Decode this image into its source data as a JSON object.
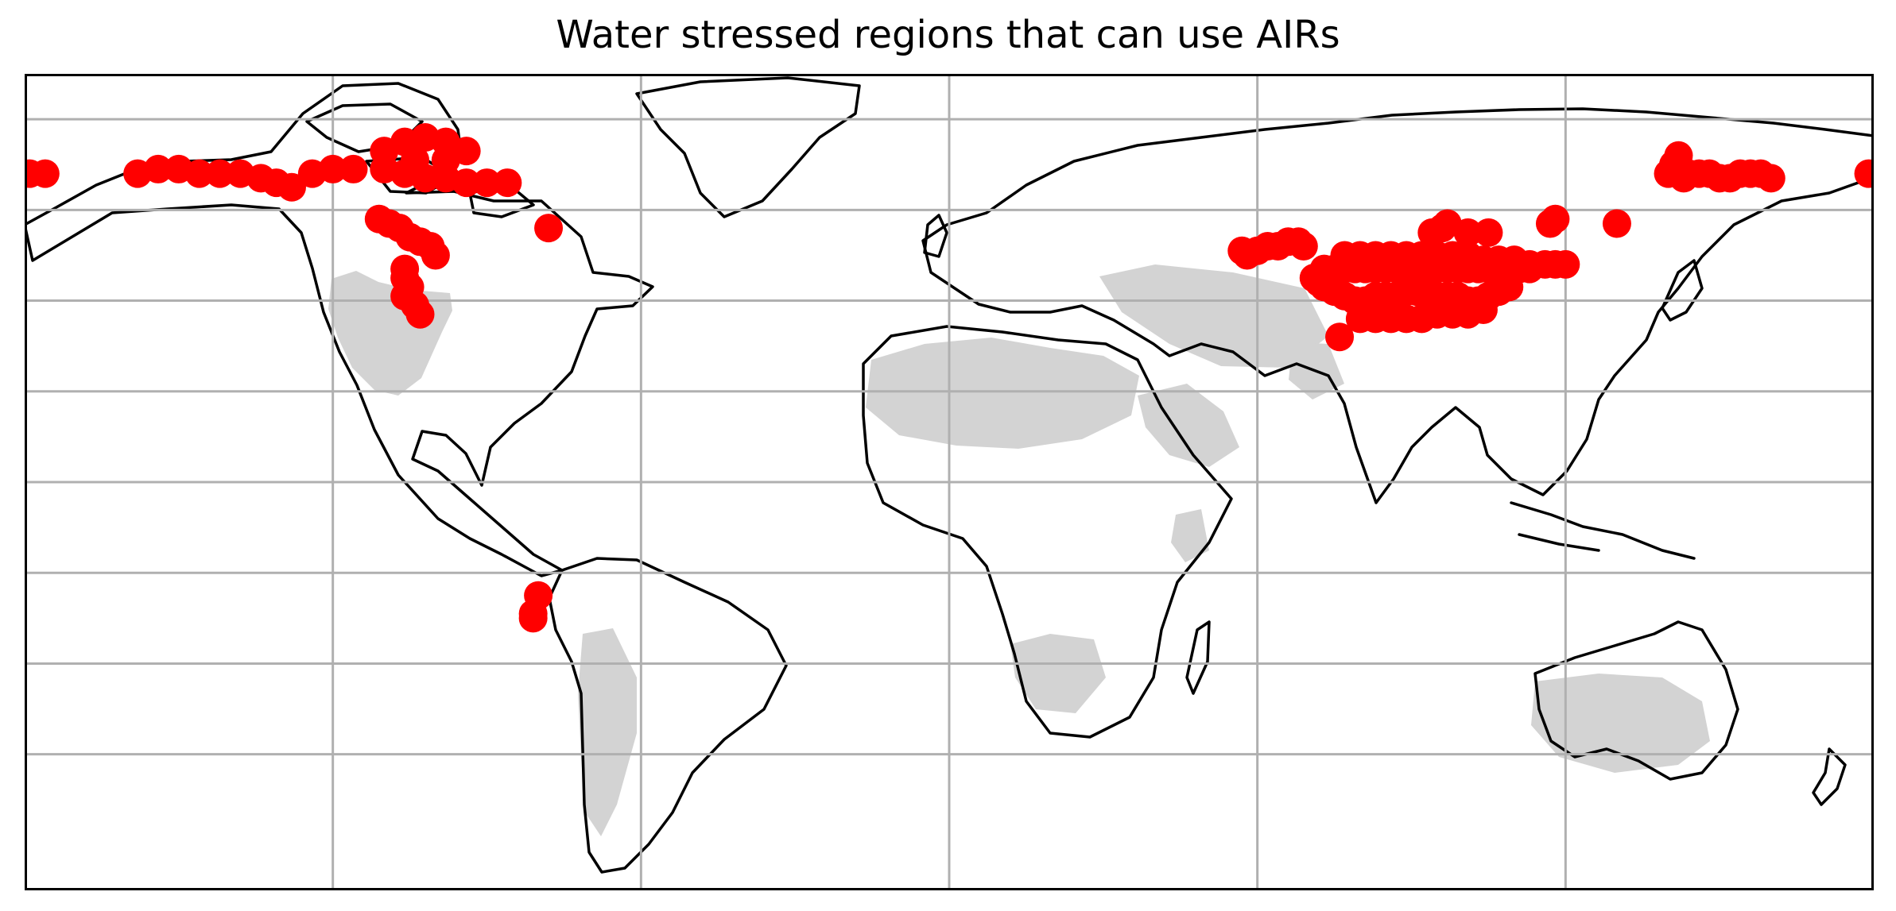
{
  "title": "Water stressed regions that can use AIRs",
  "map": {
    "projection": "PlateCarree",
    "extent": {
      "lon": [
        -180,
        180
      ],
      "lat": [
        -90,
        90
      ]
    },
    "gridlines": {
      "lon": [
        -120,
        -60,
        0,
        60,
        120
      ],
      "lat": [
        -60,
        -40,
        -20,
        0,
        20,
        40,
        60,
        80
      ],
      "color": "#b0b0b0"
    },
    "colors": {
      "coastline": "#000000",
      "stressed_land": "#d3d3d3",
      "air_site": "#ff0000",
      "frame": "#000000"
    },
    "layers": [
      {
        "id": "water-stress",
        "label": "",
        "description_color": "#d3d3d3"
      },
      {
        "id": "air-sites",
        "label": "",
        "description_color": "#ff0000"
      }
    ]
  },
  "chart_data": {
    "type": "scatter",
    "title": "Water stressed regions that can use AIRs",
    "xlim": [
      -180,
      180
    ],
    "ylim": [
      -90,
      90
    ],
    "grid": true,
    "series": [
      {
        "color": "#ff0000",
        "points": [
          [
            -179,
            68
          ],
          [
            -176,
            68
          ],
          [
            -158,
            68
          ],
          [
            -154,
            69
          ],
          [
            -150,
            69
          ],
          [
            -146,
            68
          ],
          [
            -142,
            68
          ],
          [
            -138,
            68
          ],
          [
            -134,
            67
          ],
          [
            -131,
            66
          ],
          [
            -128,
            65
          ],
          [
            -124,
            68
          ],
          [
            -120,
            69
          ],
          [
            -116,
            69
          ],
          [
            -110,
            73
          ],
          [
            -106,
            75
          ],
          [
            -102,
            76
          ],
          [
            -98,
            75
          ],
          [
            -94,
            73
          ],
          [
            -110,
            69
          ],
          [
            -106,
            68
          ],
          [
            -102,
            67
          ],
          [
            -98,
            67
          ],
          [
            -94,
            66
          ],
          [
            -90,
            66
          ],
          [
            -86,
            66
          ],
          [
            -104,
            71
          ],
          [
            -98,
            71
          ],
          [
            -111,
            58
          ],
          [
            -109,
            57
          ],
          [
            -107,
            56
          ],
          [
            -105,
            54
          ],
          [
            -103,
            53
          ],
          [
            -101,
            52
          ],
          [
            -100,
            50
          ],
          [
            -106,
            47
          ],
          [
            -106,
            45
          ],
          [
            -105,
            43
          ],
          [
            -106,
            41
          ],
          [
            -104,
            39
          ],
          [
            -103,
            37
          ],
          [
            -78,
            56
          ],
          [
            -80,
            -25
          ],
          [
            -81,
            -29
          ],
          [
            -81,
            -30
          ],
          [
            57,
            51
          ],
          [
            58,
            50
          ],
          [
            60,
            51
          ],
          [
            62,
            52
          ],
          [
            64,
            52
          ],
          [
            66,
            53
          ],
          [
            68,
            53
          ],
          [
            69,
            52
          ],
          [
            71,
            45
          ],
          [
            72,
            44
          ],
          [
            73,
            43
          ],
          [
            75,
            42
          ],
          [
            77,
            41
          ],
          [
            79,
            40
          ],
          [
            81,
            40
          ],
          [
            83,
            41
          ],
          [
            85,
            41
          ],
          [
            87,
            41
          ],
          [
            89,
            42
          ],
          [
            91,
            42
          ],
          [
            93,
            42
          ],
          [
            95,
            41
          ],
          [
            97,
            41
          ],
          [
            99,
            41
          ],
          [
            101,
            40
          ],
          [
            103,
            40
          ],
          [
            105,
            41
          ],
          [
            107,
            42
          ],
          [
            109,
            43
          ],
          [
            73,
            47
          ],
          [
            75,
            47
          ],
          [
            77,
            47
          ],
          [
            79,
            47
          ],
          [
            81,
            47
          ],
          [
            83,
            47
          ],
          [
            85,
            47
          ],
          [
            87,
            47
          ],
          [
            89,
            47
          ],
          [
            91,
            47
          ],
          [
            93,
            47
          ],
          [
            95,
            47
          ],
          [
            97,
            47
          ],
          [
            99,
            47
          ],
          [
            101,
            47
          ],
          [
            103,
            47
          ],
          [
            105,
            47
          ],
          [
            107,
            47
          ],
          [
            109,
            47
          ],
          [
            111,
            47
          ],
          [
            113,
            47
          ],
          [
            77,
            50
          ],
          [
            80,
            50
          ],
          [
            83,
            50
          ],
          [
            86,
            50
          ],
          [
            89,
            50
          ],
          [
            92,
            50
          ],
          [
            95,
            50
          ],
          [
            98,
            50
          ],
          [
            101,
            50
          ],
          [
            104,
            49
          ],
          [
            107,
            49
          ],
          [
            110,
            49
          ],
          [
            113,
            48
          ],
          [
            116,
            48
          ],
          [
            118,
            48
          ],
          [
            120,
            48
          ],
          [
            80,
            36
          ],
          [
            83,
            36
          ],
          [
            86,
            36
          ],
          [
            89,
            36
          ],
          [
            92,
            36
          ],
          [
            95,
            37
          ],
          [
            98,
            37
          ],
          [
            101,
            37
          ],
          [
            104,
            38
          ],
          [
            76,
            32
          ],
          [
            94,
            55
          ],
          [
            96,
            56
          ],
          [
            97,
            57
          ],
          [
            101,
            55
          ],
          [
            105,
            55
          ],
          [
            117,
            57
          ],
          [
            118,
            58
          ],
          [
            130,
            57
          ],
          [
            140,
            68
          ],
          [
            141,
            70
          ],
          [
            142,
            72
          ],
          [
            143,
            67
          ],
          [
            144,
            68
          ],
          [
            146,
            68
          ],
          [
            148,
            68
          ],
          [
            150,
            67
          ],
          [
            152,
            67
          ],
          [
            154,
            68
          ],
          [
            156,
            68
          ],
          [
            158,
            68
          ],
          [
            160,
            67
          ],
          [
            179,
            68
          ]
        ]
      }
    ]
  }
}
